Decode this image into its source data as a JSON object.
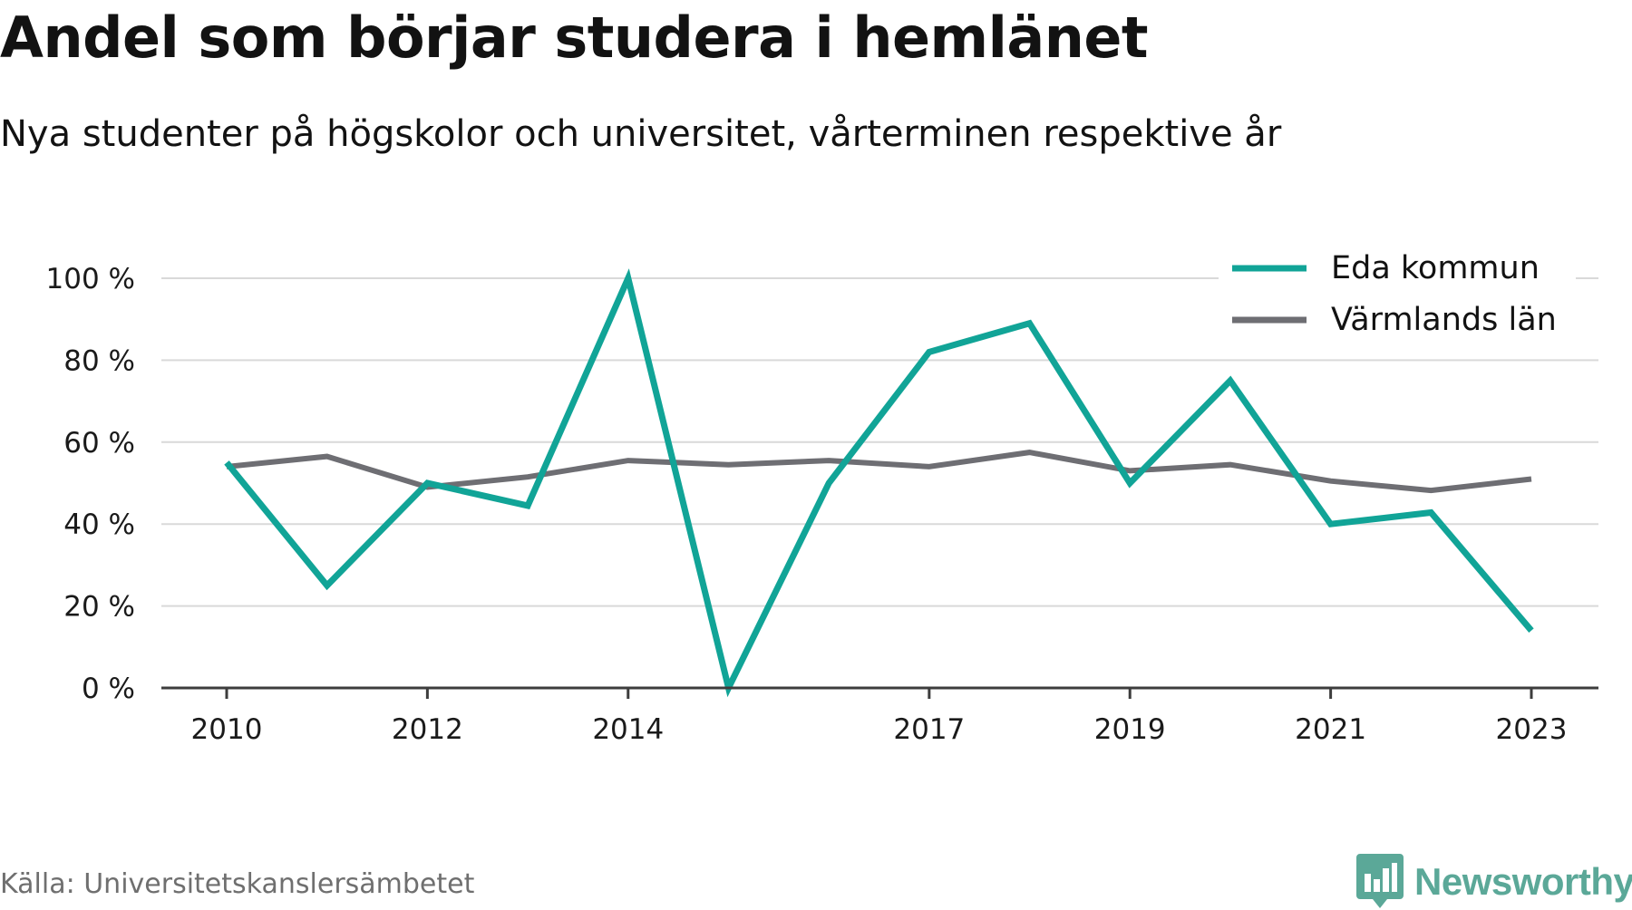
{
  "title": "Andel som börjar studera i hemlänet",
  "subtitle": "Nya studenter på högskolor och universitet, vårterminen respektive år",
  "source": "Källa: Universitetskanslersämbetet",
  "brand": {
    "name": "Newsworthy",
    "logo_icon": "newsworthy-chat-bars-icon",
    "color": "#5ba898"
  },
  "colors": {
    "eda": "#11a497",
    "varmland": "#6e6e73",
    "axis": "#3d3d3d",
    "grid": "#d9d9d9",
    "tick_text": "#1a1a1a"
  },
  "chart_data": {
    "type": "line",
    "title": "Andel som börjar studera i hemlänet",
    "subtitle": "Nya studenter på högskolor och universitet, vårterminen respektive år",
    "xlabel": "",
    "ylabel": "",
    "x": [
      2010,
      2011,
      2012,
      2013,
      2014,
      2015,
      2016,
      2017,
      2018,
      2019,
      2020,
      2021,
      2022,
      2023
    ],
    "x_tick_labels": [
      "2010",
      "2012",
      "2014",
      "2017",
      "2019",
      "2021",
      "2023"
    ],
    "y_ticks": [
      0,
      20,
      40,
      60,
      80,
      100
    ],
    "y_tick_labels": [
      "0 %",
      "20 %",
      "40 %",
      "60 %",
      "80 %",
      "100 %"
    ],
    "ylim": [
      0,
      100
    ],
    "grid": true,
    "legend_position": "top-right",
    "series": [
      {
        "name": "Eda kommun",
        "color": "#11a497",
        "values": [
          55,
          25,
          50,
          44.5,
          100,
          0,
          50,
          82,
          89,
          50,
          75,
          40,
          42.8,
          14
        ]
      },
      {
        "name": "Värmlands län",
        "color": "#6e6e73",
        "values": [
          54,
          56.5,
          49,
          51.5,
          55.5,
          54.5,
          55.5,
          54,
          57.5,
          53,
          54.5,
          50.5,
          48.2,
          51
        ]
      }
    ]
  }
}
